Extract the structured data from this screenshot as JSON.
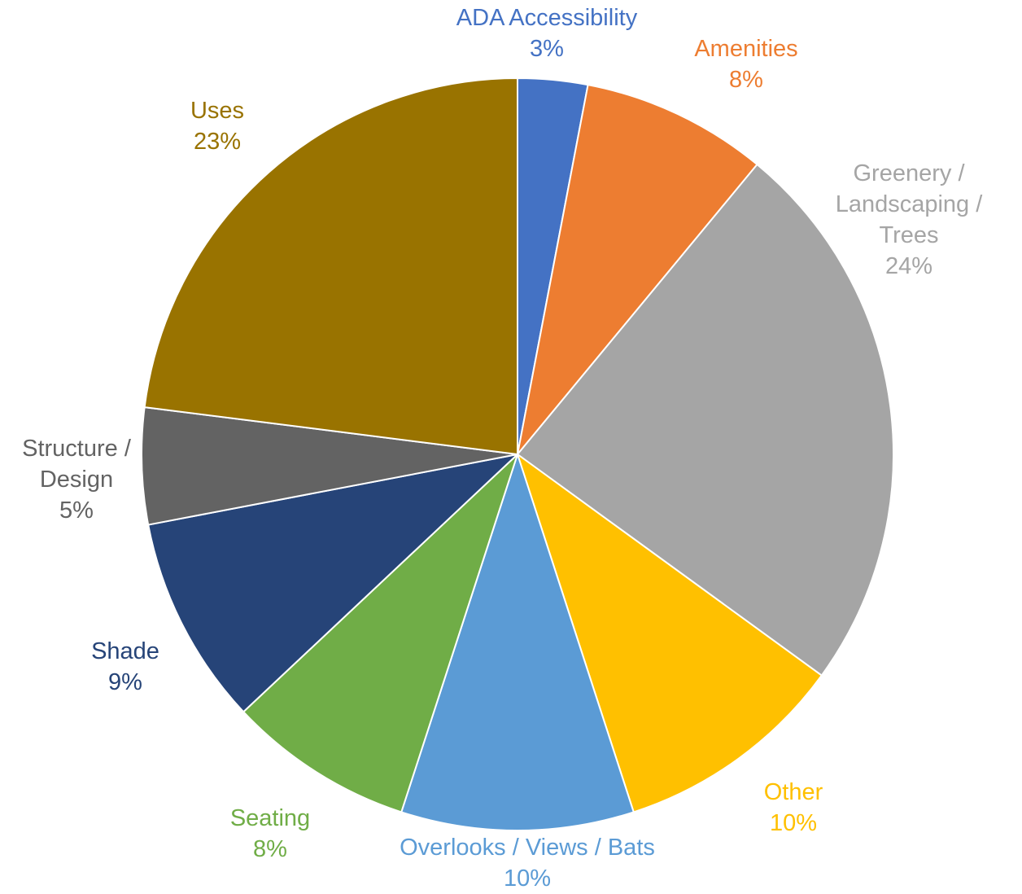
{
  "chart_data": {
    "type": "pie",
    "start_angle_deg": 0,
    "direction": "clockwise",
    "slices": [
      {
        "label_lines": [
          "ADA Accessibility"
        ],
        "pct_label": "3%",
        "value": 3,
        "color": "#4472C4"
      },
      {
        "label_lines": [
          "Amenities"
        ],
        "pct_label": "8%",
        "value": 8,
        "color": "#ED7D31"
      },
      {
        "label_lines": [
          "Greenery /",
          "Landscaping /",
          "Trees"
        ],
        "pct_label": "24%",
        "value": 24,
        "color": "#A5A5A5"
      },
      {
        "label_lines": [
          "Other"
        ],
        "pct_label": "10%",
        "value": 10,
        "color": "#FFC000"
      },
      {
        "label_lines": [
          "Overlooks / Views / Bats"
        ],
        "pct_label": "10%",
        "value": 10,
        "color": "#5B9BD5"
      },
      {
        "label_lines": [
          "Seating"
        ],
        "pct_label": "8%",
        "value": 8,
        "color": "#70AD47"
      },
      {
        "label_lines": [
          "Shade"
        ],
        "pct_label": "9%",
        "value": 9,
        "color": "#264478"
      },
      {
        "label_lines": [
          "Structure /",
          "Design"
        ],
        "pct_label": "5%",
        "value": 5,
        "color": "#636363"
      },
      {
        "label_lines": [
          "Uses"
        ],
        "pct_label": "23%",
        "value": 23,
        "color": "#997300"
      }
    ]
  }
}
